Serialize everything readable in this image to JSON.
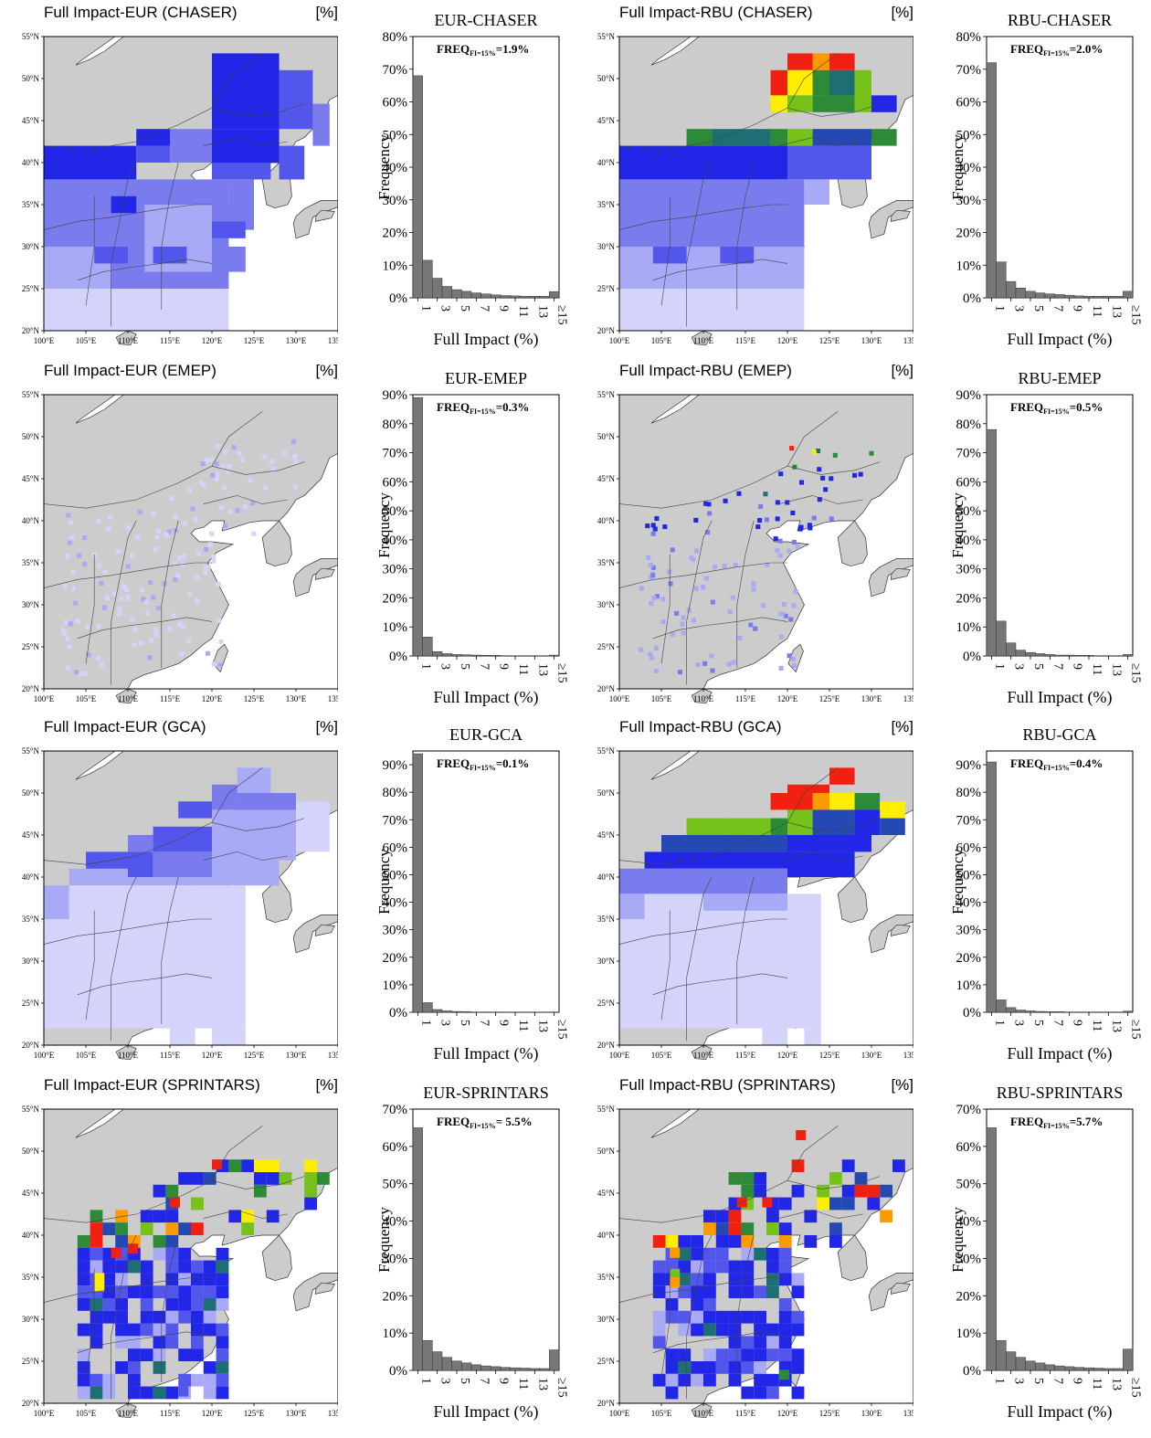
{
  "colors": {
    "land": "#cccccc",
    "ocean": "#ffffff",
    "bar": "#777777",
    "c1": "#d4d4fb",
    "c2": "#a9aaf6",
    "c3": "#7a7cee",
    "c4": "#5356ea",
    "c5": "#2226e6",
    "c6": "#2448b4",
    "c7": "#1e6f73",
    "c8": "#2d8a36",
    "c9": "#76c11a",
    "c10": "#ffee00",
    "c11": "#fc9a00",
    "c12": "#f22010"
  },
  "map_axes": {
    "lon_ticks": [
      "100°E",
      "105°E",
      "110°E",
      "115°E",
      "120°E",
      "125°E",
      "130°E",
      "135°E"
    ],
    "lat_ticks": [
      "55°N",
      "50°N",
      "45°N",
      "40°N",
      "35°N",
      "30°N",
      "25°N",
      "20°N"
    ]
  },
  "hist_axes": {
    "x_ticks": [
      "1",
      "3",
      "5",
      "7",
      "9",
      "11",
      "13",
      "≥15"
    ],
    "ylabel": "Frequency",
    "xlabel": "Full Impact (%)",
    "freq_label": "FREQ",
    "freq_sub": "FI=15%"
  },
  "panels": [
    {
      "map_title": "Full Impact-EUR (CHASER)",
      "map_unit": "[%]",
      "hist_title": "EUR-CHASER",
      "freq_value": "=1.9%",
      "ymax": 80,
      "yticks": [
        0,
        10,
        20,
        30,
        40,
        50,
        60,
        70,
        80
      ],
      "values": [
        68,
        11.5,
        6,
        3.5,
        2.5,
        2,
        1.5,
        1.2,
        0.9,
        0.7,
        0.6,
        0.5,
        0.5,
        0.5,
        1.9
      ],
      "blocks": [
        [
          100,
          42,
          111,
          38,
          "c5"
        ],
        [
          111,
          44,
          115,
          42,
          "c5"
        ],
        [
          111,
          42,
          115,
          40,
          "c4"
        ],
        [
          115,
          44,
          120,
          40,
          "c3"
        ],
        [
          120,
          53,
          128,
          44,
          "c5"
        ],
        [
          128,
          51,
          132,
          44,
          "c4"
        ],
        [
          132,
          47,
          134,
          42,
          "c3"
        ],
        [
          120,
          44,
          128,
          40,
          "c5"
        ],
        [
          128,
          42,
          131,
          38,
          "c4"
        ],
        [
          100,
          38,
          110,
          25,
          "c3"
        ],
        [
          110,
          38,
          122,
          25,
          "c3"
        ],
        [
          120,
          40,
          127,
          38,
          "c4"
        ],
        [
          122,
          38,
          125,
          35,
          "c3"
        ],
        [
          120,
          35,
          125,
          32,
          "c3"
        ],
        [
          120,
          30,
          124,
          27,
          "c3"
        ],
        [
          100,
          30,
          108,
          25,
          "c2"
        ],
        [
          100,
          25,
          122,
          20,
          "c1"
        ],
        [
          112,
          35,
          120,
          27,
          "c2"
        ],
        [
          108,
          36,
          111,
          34,
          "c5"
        ],
        [
          106,
          30,
          110,
          28,
          "c4"
        ],
        [
          113,
          30,
          117,
          28,
          "c4"
        ],
        [
          120,
          33,
          124,
          31,
          "c4"
        ]
      ]
    },
    {
      "map_title": "Full Impact-RBU (CHASER)",
      "map_unit": "[%]",
      "hist_title": "RBU-CHASER",
      "freq_value": "=2.0%",
      "ymax": 80,
      "yticks": [
        0,
        10,
        20,
        30,
        40,
        50,
        60,
        70,
        80
      ],
      "values": [
        72,
        11,
        5,
        3,
        2,
        1.5,
        1.2,
        1,
        0.8,
        0.6,
        0.5,
        0.5,
        0.5,
        0.5,
        2.0
      ],
      "blocks": [
        [
          120,
          53,
          123,
          51,
          "c12"
        ],
        [
          123,
          53,
          125,
          51,
          "c11"
        ],
        [
          125,
          53,
          128,
          51,
          "c12"
        ],
        [
          118,
          51,
          120,
          48,
          "c12"
        ],
        [
          120,
          51,
          123,
          48,
          "c10"
        ],
        [
          123,
          51,
          125,
          48,
          "c8"
        ],
        [
          125,
          51,
          128,
          48,
          "c7"
        ],
        [
          128,
          51,
          130,
          48,
          "c9"
        ],
        [
          118,
          48,
          120,
          46,
          "c10"
        ],
        [
          120,
          48,
          123,
          46,
          "c9"
        ],
        [
          123,
          48,
          128,
          46,
          "c8"
        ],
        [
          128,
          48,
          130,
          46,
          "c9"
        ],
        [
          130,
          48,
          133,
          46,
          "c5"
        ],
        [
          108,
          44,
          111,
          42,
          "c8"
        ],
        [
          111,
          44,
          118,
          42,
          "c7"
        ],
        [
          118,
          44,
          120,
          42,
          "c8"
        ],
        [
          120,
          44,
          123,
          42,
          "c9"
        ],
        [
          123,
          44,
          130,
          42,
          "c6"
        ],
        [
          130,
          44,
          133,
          42,
          "c8"
        ],
        [
          100,
          42,
          120,
          38,
          "c5"
        ],
        [
          120,
          42,
          130,
          38,
          "c4"
        ],
        [
          100,
          38,
          110,
          30,
          "c3"
        ],
        [
          110,
          38,
          122,
          30,
          "c3"
        ],
        [
          122,
          38,
          125,
          35,
          "c2"
        ],
        [
          100,
          30,
          122,
          25,
          "c2"
        ],
        [
          100,
          25,
          122,
          20,
          "c1"
        ],
        [
          104,
          30,
          108,
          28,
          "c4"
        ],
        [
          112,
          30,
          116,
          28,
          "c4"
        ]
      ]
    },
    {
      "map_title": "Full Impact-EUR (EMEP)",
      "map_unit": "[%]",
      "hist_title": "EUR-EMEP",
      "freq_value": "=0.3%",
      "ymax": 90,
      "yticks": [
        0,
        10,
        20,
        30,
        40,
        50,
        60,
        70,
        80,
        90
      ],
      "values": [
        89,
        6.5,
        1.5,
        0.8,
        0.5,
        0.4,
        0.3,
        0.2,
        0.2,
        0.1,
        0.1,
        0.1,
        0.1,
        0.1,
        0.3
      ],
      "blocks": []
    },
    {
      "map_title": "Full Impact-RBU (EMEP)",
      "map_unit": "[%]",
      "hist_title": "RBU-EMEP",
      "freq_value": "=0.5%",
      "ymax": 90,
      "yticks": [
        0,
        10,
        20,
        30,
        40,
        50,
        60,
        70,
        80,
        90
      ],
      "values": [
        78,
        12,
        4.5,
        2,
        1.2,
        0.8,
        0.5,
        0.3,
        0.3,
        0.2,
        0.2,
        0.1,
        0.1,
        0.1,
        0.5
      ],
      "blocks": []
    },
    {
      "map_title": "Full Impact-EUR (GCA)",
      "map_unit": "[%]",
      "hist_title": "EUR-GCA",
      "freq_value": "=0.1%",
      "ymax": 95,
      "yticks": [
        0,
        10,
        20,
        30,
        40,
        50,
        60,
        70,
        80,
        90
      ],
      "values": [
        94,
        3.5,
        1,
        0.5,
        0.3,
        0.2,
        0.1,
        0.1,
        0.1,
        0.05,
        0.05,
        0.05,
        0.05,
        0.05,
        0.1
      ],
      "blocks": [
        [
          123,
          53,
          127,
          50,
          "c2"
        ],
        [
          120,
          51,
          123,
          48,
          "c3"
        ],
        [
          116,
          49,
          120,
          47,
          "c4"
        ],
        [
          123,
          50,
          130,
          47,
          "c3"
        ],
        [
          130,
          49,
          134,
          43,
          "c1"
        ],
        [
          113,
          46,
          120,
          43,
          "c4"
        ],
        [
          110,
          45,
          113,
          43,
          "c3"
        ],
        [
          120,
          48,
          130,
          42,
          "c2"
        ],
        [
          105,
          43,
          113,
          40,
          "c4"
        ],
        [
          113,
          43,
          120,
          40,
          "c3"
        ],
        [
          103,
          41,
          110,
          39,
          "c2"
        ],
        [
          110,
          40,
          120,
          39,
          "c2"
        ],
        [
          120,
          42,
          128,
          39,
          "c2"
        ],
        [
          100,
          39,
          124,
          22,
          "c1"
        ],
        [
          100,
          39,
          103,
          35,
          "c2"
        ],
        [
          115,
          22,
          118,
          20,
          "c1"
        ],
        [
          120,
          22,
          124,
          20,
          "c1"
        ]
      ]
    },
    {
      "map_title": "Full Impact-RBU (GCA)",
      "map_unit": "[%]",
      "hist_title": "RBU-GCA",
      "freq_value": "=0.4%",
      "ymax": 95,
      "yticks": [
        0,
        10,
        20,
        30,
        40,
        50,
        60,
        70,
        80,
        90
      ],
      "values": [
        91,
        4.5,
        1.7,
        0.8,
        0.5,
        0.3,
        0.2,
        0.2,
        0.1,
        0.1,
        0.1,
        0.1,
        0.1,
        0.1,
        0.4
      ],
      "blocks": [
        [
          125,
          53,
          128,
          51,
          "c12"
        ],
        [
          120,
          51,
          125,
          50,
          "c12"
        ],
        [
          118,
          50,
          120,
          48,
          "c12"
        ],
        [
          120,
          50,
          123,
          48,
          "c12"
        ],
        [
          123,
          50,
          125,
          48,
          "c11"
        ],
        [
          125,
          50,
          128,
          48,
          "c10"
        ],
        [
          128,
          50,
          131,
          48,
          "c8"
        ],
        [
          131,
          49,
          134,
          47,
          "c10"
        ],
        [
          108,
          47,
          113,
          45,
          "c9"
        ],
        [
          113,
          47,
          118,
          45,
          "c9"
        ],
        [
          118,
          47,
          120,
          45,
          "c8"
        ],
        [
          120,
          48,
          123,
          45,
          "c9"
        ],
        [
          123,
          48,
          128,
          45,
          "c6"
        ],
        [
          128,
          48,
          131,
          45,
          "c5"
        ],
        [
          131,
          47,
          134,
          45,
          "c6"
        ],
        [
          105,
          45,
          120,
          43,
          "c6"
        ],
        [
          120,
          45,
          130,
          43,
          "c5"
        ],
        [
          103,
          43,
          120,
          41,
          "c5"
        ],
        [
          120,
          43,
          128,
          40,
          "c5"
        ],
        [
          100,
          41,
          110,
          38,
          "c3"
        ],
        [
          110,
          41,
          120,
          38,
          "c3"
        ],
        [
          100,
          38,
          124,
          22,
          "c1"
        ],
        [
          110,
          38,
          120,
          36,
          "c2"
        ],
        [
          100,
          38,
          103,
          35,
          "c2"
        ],
        [
          117,
          22,
          120,
          20,
          "c1"
        ],
        [
          122,
          22,
          124,
          20,
          "c1"
        ]
      ]
    },
    {
      "map_title": "Full Impact-EUR (SPRINTARS)",
      "map_unit": "[%]",
      "hist_title": "EUR-SPRINTARS",
      "freq_value": "= 5.5%",
      "ymax": 70,
      "yticks": [
        0,
        10,
        20,
        30,
        40,
        50,
        60,
        70
      ],
      "values": [
        65,
        8,
        5,
        3.5,
        2.5,
        2,
        1.5,
        1.2,
        1,
        0.8,
        0.7,
        0.6,
        0.5,
        0.5,
        5.5
      ],
      "blocks": []
    },
    {
      "map_title": "Full Impact-RBU (SPRINTARS)",
      "map_unit": "[%]",
      "hist_title": "RBU-SPRINTARS",
      "freq_value": "=5.7%",
      "ymax": 70,
      "yticks": [
        0,
        10,
        20,
        30,
        40,
        50,
        60,
        70
      ],
      "values": [
        65,
        8,
        5,
        3.5,
        2.5,
        2,
        1.5,
        1.2,
        1,
        0.8,
        0.7,
        0.6,
        0.5,
        0.5,
        5.7
      ],
      "blocks": []
    }
  ]
}
